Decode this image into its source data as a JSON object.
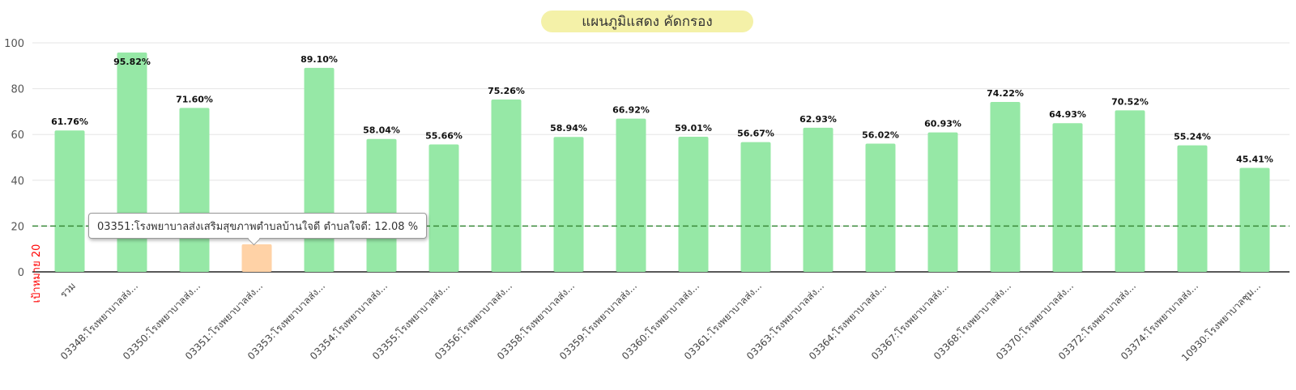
{
  "chart_data": {
    "type": "bar",
    "title": "แผนภูมิแสดง คัดกรอง",
    "ylim": [
      0,
      100
    ],
    "yticks": [
      0,
      20,
      40,
      60,
      80,
      100
    ],
    "grid": true,
    "categories": [
      "รวม",
      "03348:โรงพยาบาลส่ง...",
      "03350:โรงพยาบาลส่ง...",
      "03351:โรงพยาบาลส่ง...",
      "03353:โรงพยาบาลส่ง...",
      "03354:โรงพยาบาลส่ง...",
      "03355:โรงพยาบาลส่ง...",
      "03356:โรงพยาบาลส่ง...",
      "03358:โรงพยาบาลส่ง...",
      "03359:โรงพยาบาลส่ง...",
      "03360:โรงพยาบาลส่ง...",
      "03361:โรงพยาบาลส่ง...",
      "03363:โรงพยาบาลส่ง...",
      "03364:โรงพยาบาลส่ง...",
      "03367:โรงพยาบาลส่ง...",
      "03368:โรงพยาบาลส่ง...",
      "03370:โรงพยาบาลส่ง...",
      "03372:โรงพยาบาลส่ง...",
      "03374:โรงพยาบาลส่ง...",
      "10930:โรงพยาบาลชุม..."
    ],
    "values": [
      61.76,
      95.82,
      71.6,
      12.08,
      89.1,
      58.04,
      55.66,
      75.26,
      58.94,
      66.92,
      59.01,
      56.67,
      62.93,
      56.02,
      60.93,
      74.22,
      64.93,
      70.52,
      55.24,
      45.41
    ],
    "data_labels": [
      "61.76%",
      "95.82%",
      "71.60%",
      "",
      "89.10%",
      "58.04%",
      "55.66%",
      "75.26%",
      "58.94%",
      "66.92%",
      "59.01%",
      "56.67%",
      "62.93%",
      "56.02%",
      "60.93%",
      "74.22%",
      "64.93%",
      "70.52%",
      "55.24%",
      "45.41%"
    ],
    "bar_color": "#96e8a6",
    "highlight_color": "#ffd2a6",
    "highlight_index": 3,
    "target": {
      "value": 20,
      "label": "เป้าหมาย 20",
      "line_color": "#3a8a3a",
      "label_color": "#ff0000"
    },
    "tooltip": "03351:โรงพยาบาลส่งเสริมสุขภาพตำบลบ้านใจดี ตำบลใจดี: 12.08 %"
  }
}
